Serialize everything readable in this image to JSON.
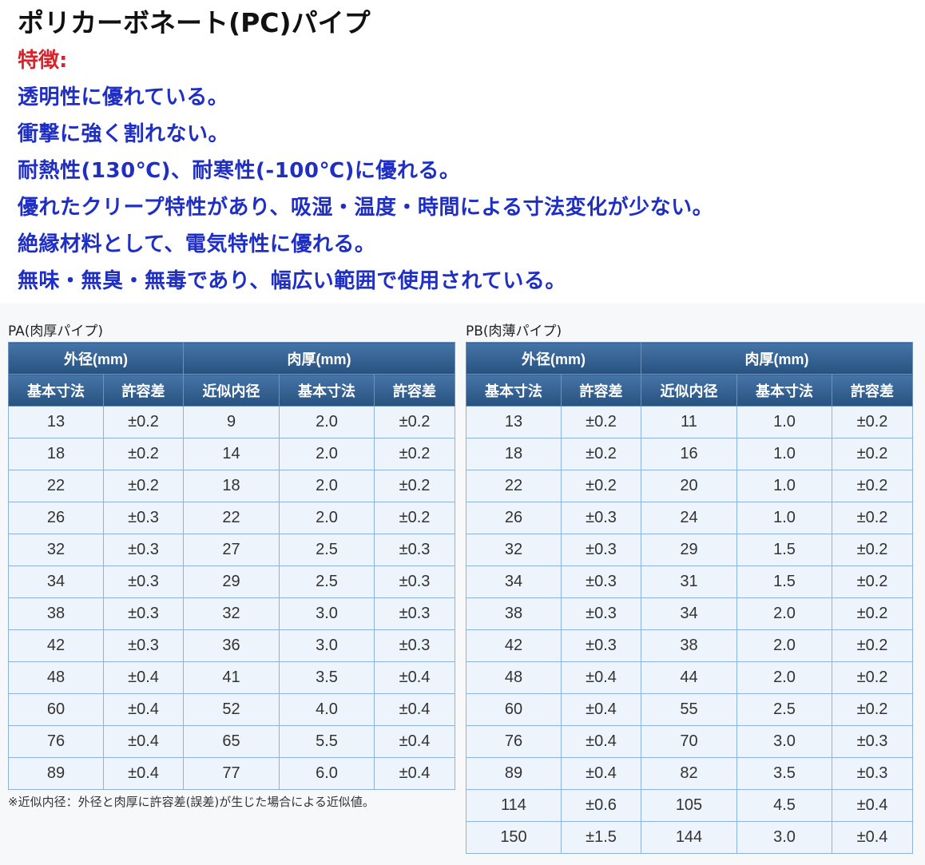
{
  "title": "ポリカーボネート(PC)パイプ",
  "features_heading": "特徴:",
  "features": [
    "透明性に優れている。",
    "衝撃に強く割れない。",
    "耐熱性(130℃)、耐寒性(-100℃)に優れる。",
    "優れたクリープ特性があり、吸湿・温度・時間による寸法変化が少ない。",
    "絶縁材料として、電気特性に優れる。",
    "無味・無臭・無毒であり、幅広い範囲で使用されている。"
  ],
  "group_headers": [
    "外径(mm)",
    "肉厚(mm)"
  ],
  "column_headers": [
    "基本寸法",
    "許容差",
    "近似内径",
    "基本寸法",
    "許容差"
  ],
  "tables": [
    {
      "label": "PA(肉厚パイプ)",
      "rows": [
        [
          "13",
          "±0.2",
          "9",
          "2.0",
          "±0.2"
        ],
        [
          "18",
          "±0.2",
          "14",
          "2.0",
          "±0.2"
        ],
        [
          "22",
          "±0.2",
          "18",
          "2.0",
          "±0.2"
        ],
        [
          "26",
          "±0.3",
          "22",
          "2.0",
          "±0.2"
        ],
        [
          "32",
          "±0.3",
          "27",
          "2.5",
          "±0.3"
        ],
        [
          "34",
          "±0.3",
          "29",
          "2.5",
          "±0.3"
        ],
        [
          "38",
          "±0.3",
          "32",
          "3.0",
          "±0.3"
        ],
        [
          "42",
          "±0.3",
          "36",
          "3.0",
          "±0.3"
        ],
        [
          "48",
          "±0.4",
          "41",
          "3.5",
          "±0.4"
        ],
        [
          "60",
          "±0.4",
          "52",
          "4.0",
          "±0.4"
        ],
        [
          "76",
          "±0.4",
          "65",
          "5.5",
          "±0.4"
        ],
        [
          "89",
          "±0.4",
          "77",
          "6.0",
          "±0.4"
        ]
      ]
    },
    {
      "label": "PB(肉薄パイプ)",
      "rows": [
        [
          "13",
          "±0.2",
          "11",
          "1.0",
          "±0.2"
        ],
        [
          "18",
          "±0.2",
          "16",
          "1.0",
          "±0.2"
        ],
        [
          "22",
          "±0.2",
          "20",
          "1.0",
          "±0.2"
        ],
        [
          "26",
          "±0.3",
          "24",
          "1.0",
          "±0.2"
        ],
        [
          "32",
          "±0.3",
          "29",
          "1.5",
          "±0.2"
        ],
        [
          "34",
          "±0.3",
          "31",
          "1.5",
          "±0.2"
        ],
        [
          "38",
          "±0.3",
          "34",
          "2.0",
          "±0.2"
        ],
        [
          "42",
          "±0.3",
          "38",
          "2.0",
          "±0.2"
        ],
        [
          "48",
          "±0.4",
          "44",
          "2.0",
          "±0.2"
        ],
        [
          "60",
          "±0.4",
          "55",
          "2.5",
          "±0.2"
        ],
        [
          "76",
          "±0.4",
          "70",
          "3.0",
          "±0.3"
        ],
        [
          "89",
          "±0.4",
          "82",
          "3.5",
          "±0.3"
        ],
        [
          "114",
          "±0.6",
          "105",
          "4.5",
          "±0.4"
        ],
        [
          "150",
          "±1.5",
          "144",
          "3.0",
          "±0.4"
        ]
      ]
    }
  ],
  "footnote": "※近似内径：外径と肉厚に許容差(誤差)が生じた場合による近似値。",
  "colors": {
    "feature_text": "#1f2fc4",
    "heading_red": "#d8232a",
    "table_header": "#2f5f92"
  }
}
